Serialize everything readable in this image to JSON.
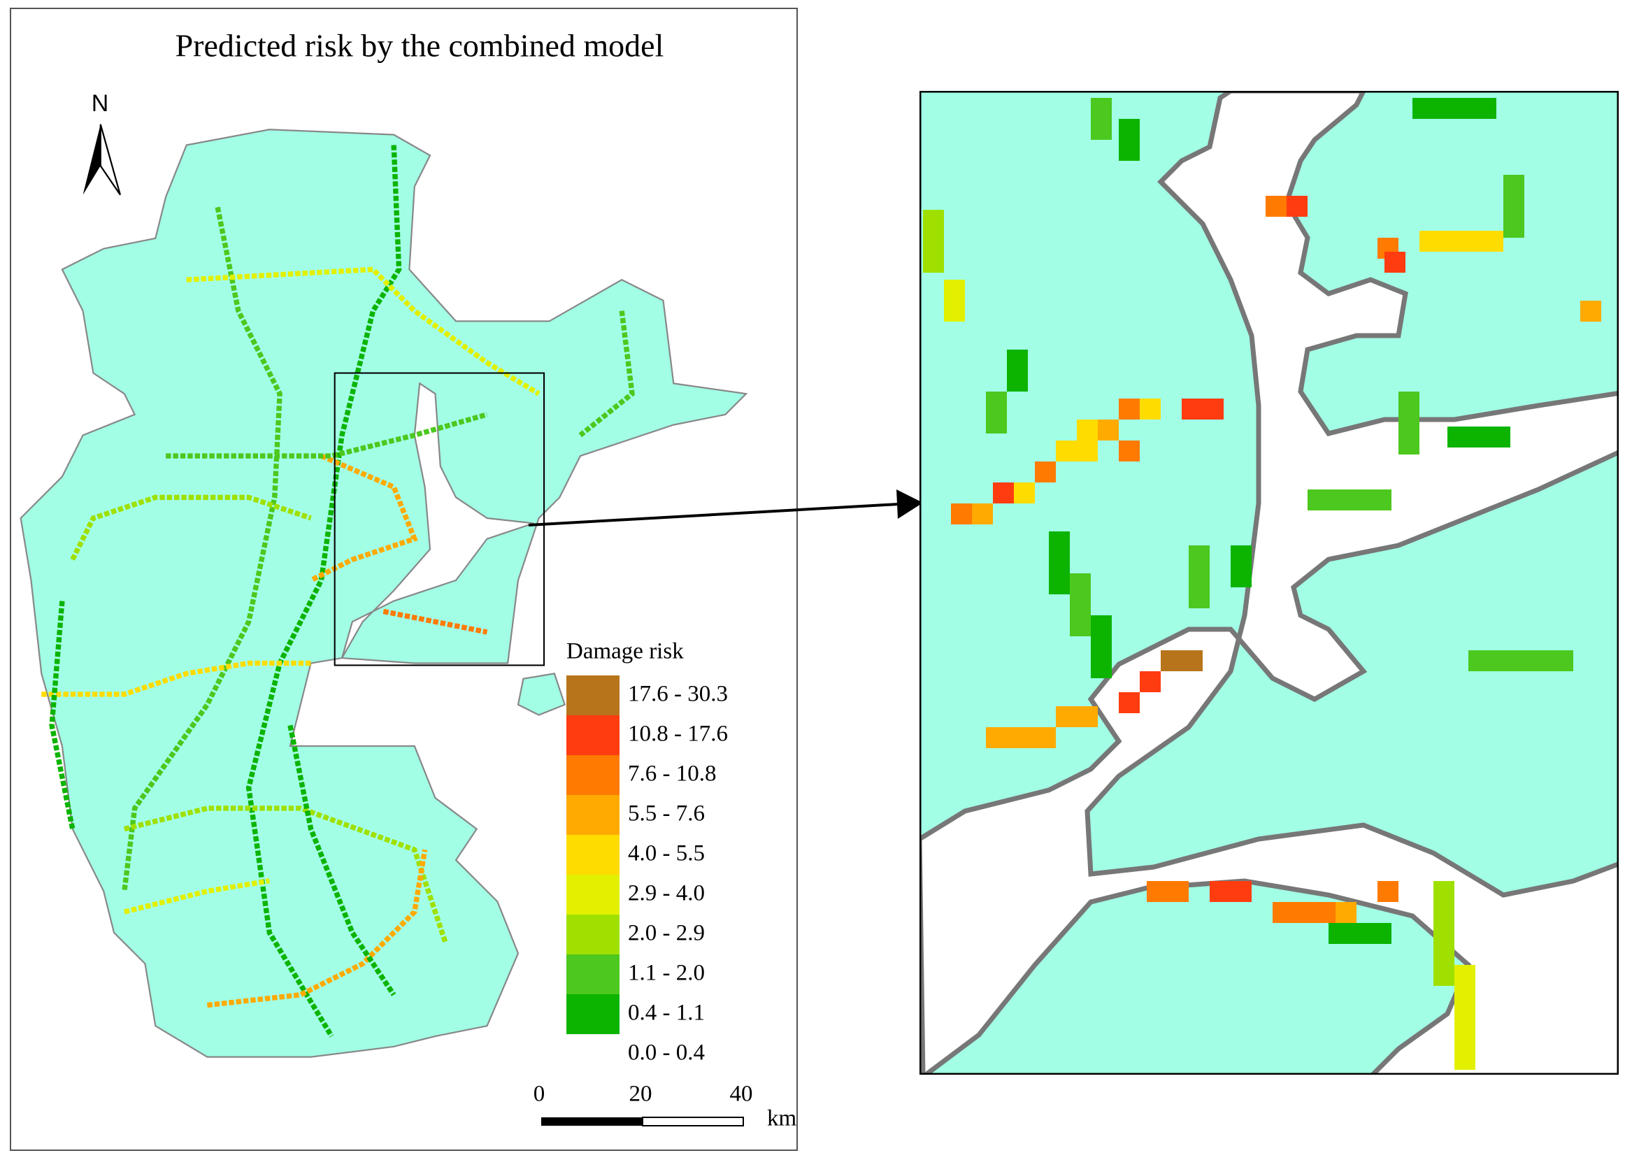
{
  "title": "Predicted risk by the combined model",
  "north": "N",
  "legend": {
    "title": "Damage risk",
    "items": [
      {
        "label": "17.6 - 30.3",
        "color": "#b8741a"
      },
      {
        "label": "10.8 - 17.6",
        "color": "#ff3c10"
      },
      {
        "label": "7.6 - 10.8",
        "color": "#ff7a00"
      },
      {
        "label": "5.5 - 7.6",
        "color": "#ffaa00"
      },
      {
        "label": "4.0 - 5.5",
        "color": "#ffdc00"
      },
      {
        "label": "2.9 - 4.0",
        "color": "#e2f000"
      },
      {
        "label": "2.0 - 2.9",
        "color": "#a0e000"
      },
      {
        "label": "1.1 - 2.0",
        "color": "#4cc81e"
      },
      {
        "label": "0.4 - 1.1",
        "color": "#0cb400"
      },
      {
        "label": "0.0 - 0.4",
        "color": "#ffffff"
      }
    ]
  },
  "scale_bar": {
    "labels": [
      "0",
      "20",
      "40"
    ],
    "unit": "km"
  }
}
